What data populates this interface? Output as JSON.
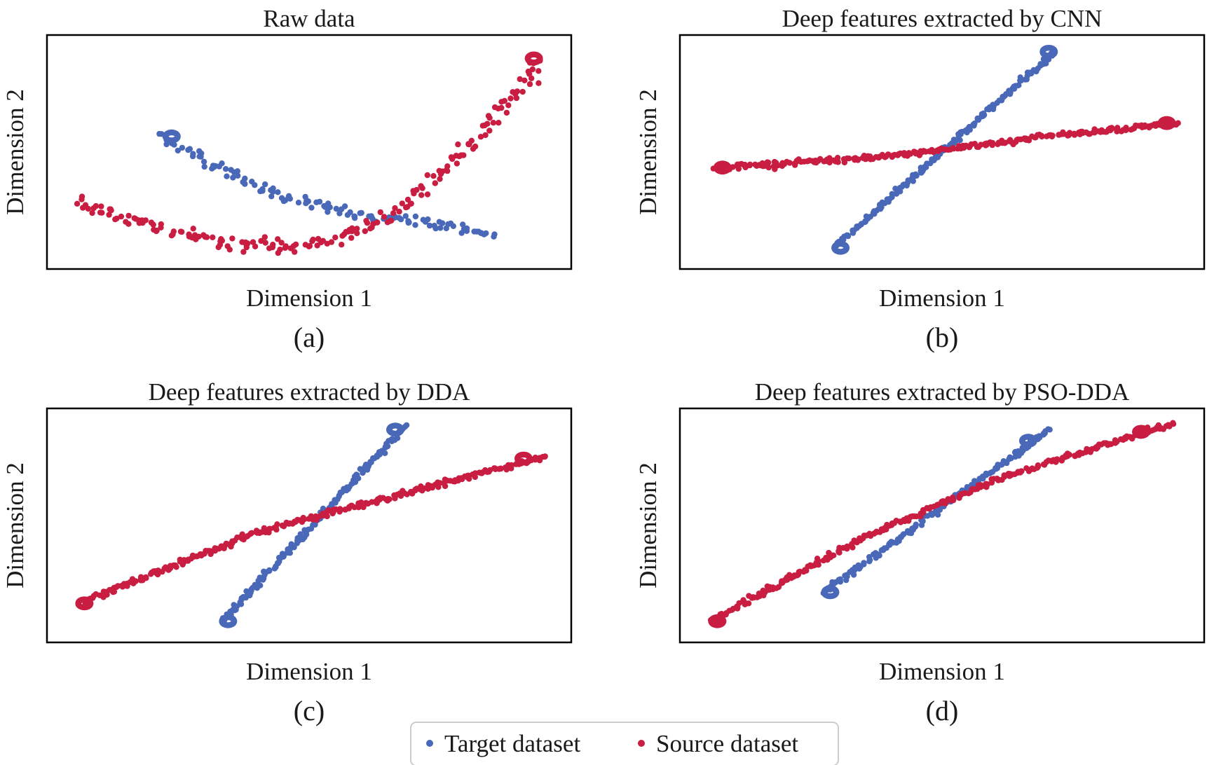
{
  "legend": {
    "target_label": "Target dataset",
    "source_label": "Source dataset",
    "target_color": "#4a68b8",
    "source_color": "#c91d42"
  },
  "panels": [
    {
      "title": "Raw data",
      "xlabel": "Dimension 1",
      "ylabel": "Dimension 2",
      "sublabel": "(a)"
    },
    {
      "title": "Deep features extracted by CNN",
      "xlabel": "Dimension 1",
      "ylabel": "Dimension 2",
      "sublabel": "(b)"
    },
    {
      "title": "Deep features extracted by DDA",
      "xlabel": "Dimension 1",
      "ylabel": "Dimension 2",
      "sublabel": "(c)"
    },
    {
      "title": "Deep features extracted by PSO-DDA",
      "xlabel": "Dimension 1",
      "ylabel": "Dimension 2",
      "sublabel": "(d)"
    }
  ],
  "chart_data": [
    {
      "type": "scatter",
      "title": "Raw data",
      "xlabel": "Dimension 1",
      "ylabel": "Dimension 2",
      "xlim": [
        0,
        1
      ],
      "ylim": [
        0,
        1
      ],
      "grid": false,
      "ticks": false,
      "series": [
        {
          "name": "Target dataset",
          "color": "#4a68b8",
          "path": [
            [
              0.21,
              0.57
            ],
            [
              0.42,
              0.32
            ],
            [
              0.6,
              0.21
            ],
            [
              0.78,
              0.17
            ],
            [
              0.86,
              0.12
            ]
          ],
          "loops": [
            {
              "at": [
                0.22,
                0.57
              ],
              "dir": 1
            }
          ],
          "spread": 0.012,
          "density": 4
        },
        {
          "name": "Source dataset",
          "color": "#c91d42",
          "path": [
            [
              0.04,
              0.28
            ],
            [
              0.15,
              0.2
            ],
            [
              0.3,
              0.11
            ],
            [
              0.45,
              0.07
            ],
            [
              0.55,
              0.11
            ],
            [
              0.64,
              0.19
            ],
            [
              0.72,
              0.32
            ],
            [
              0.85,
              0.62
            ],
            [
              0.95,
              0.91
            ]
          ],
          "loops": [
            {
              "at": [
                0.95,
                0.92
              ],
              "dir": -1
            }
          ],
          "spread": 0.016,
          "density": 4
        }
      ]
    },
    {
      "type": "scatter",
      "title": "Deep features extracted by CNN",
      "xlabel": "Dimension 1",
      "ylabel": "Dimension 2",
      "xlim": [
        0,
        1
      ],
      "ylim": [
        0,
        1
      ],
      "grid": false,
      "ticks": false,
      "series": [
        {
          "name": "Target dataset",
          "color": "#4a68b8",
          "path": [
            [
              0.29,
              0.07
            ],
            [
              0.72,
              0.95
            ]
          ],
          "loops": [
            {
              "at": [
                0.29,
                0.07
              ],
              "dir": 1
            },
            {
              "at": [
                0.72,
                0.95
              ],
              "dir": -1
            }
          ],
          "spread": 0.006,
          "density": 2.5
        },
        {
          "name": "Source dataset",
          "color": "#c91d42",
          "path": [
            [
              0.06,
              0.43
            ],
            [
              0.4,
              0.48
            ],
            [
              0.7,
              0.57
            ],
            [
              0.96,
              0.63
            ]
          ],
          "loops": [
            {
              "at": [
                0.06,
                0.43
              ],
              "dir": 1
            },
            {
              "at": [
                0.95,
                0.63
              ],
              "dir": -1
            }
          ],
          "spread": 0.006,
          "density": 2.5
        }
      ]
    },
    {
      "type": "scatter",
      "title": "Deep features extracted by DDA",
      "xlabel": "Dimension 1",
      "ylabel": "Dimension 2",
      "xlim": [
        0,
        1
      ],
      "ylim": [
        0,
        1
      ],
      "grid": false,
      "ticks": false,
      "series": [
        {
          "name": "Target dataset",
          "color": "#4a68b8",
          "path": [
            [
              0.33,
              0.07
            ],
            [
              0.69,
              0.95
            ]
          ],
          "loops": [
            {
              "at": [
                0.33,
                0.07
              ],
              "dir": 1
            },
            {
              "at": [
                0.68,
                0.93
              ],
              "dir": -1
            }
          ],
          "spread": 0.006,
          "density": 2.5
        },
        {
          "name": "Source dataset",
          "color": "#c91d42",
          "path": [
            [
              0.05,
              0.15
            ],
            [
              0.4,
              0.47
            ],
            [
              0.96,
              0.81
            ]
          ],
          "loops": [
            {
              "at": [
                0.05,
                0.15
              ],
              "dir": 1
            },
            {
              "at": [
                0.93,
                0.8
              ],
              "dir": -1
            }
          ],
          "spread": 0.006,
          "density": 2.5
        }
      ]
    },
    {
      "type": "scatter",
      "title": "Deep features extracted by PSO-DDA",
      "xlabel": "Dimension 1",
      "ylabel": "Dimension 2",
      "xlim": [
        0,
        1
      ],
      "ylim": [
        0,
        1
      ],
      "grid": false,
      "ticks": false,
      "series": [
        {
          "name": "Target dataset",
          "color": "#4a68b8",
          "path": [
            [
              0.27,
              0.2
            ],
            [
              0.71,
              0.93
            ]
          ],
          "loops": [
            {
              "at": [
                0.27,
                0.2
              ],
              "dir": 1
            },
            {
              "at": [
                0.68,
                0.88
              ],
              "dir": -1
            }
          ],
          "spread": 0.006,
          "density": 2.5
        },
        {
          "name": "Source dataset",
          "color": "#c91d42",
          "path": [
            [
              0.05,
              0.07
            ],
            [
              0.35,
              0.45
            ],
            [
              0.6,
              0.7
            ],
            [
              0.95,
              0.96
            ]
          ],
          "loops": [
            {
              "at": [
                0.05,
                0.07
              ],
              "dir": 1
            },
            {
              "at": [
                0.9,
                0.92
              ],
              "dir": -1
            }
          ],
          "spread": 0.006,
          "density": 2.5
        }
      ]
    }
  ]
}
